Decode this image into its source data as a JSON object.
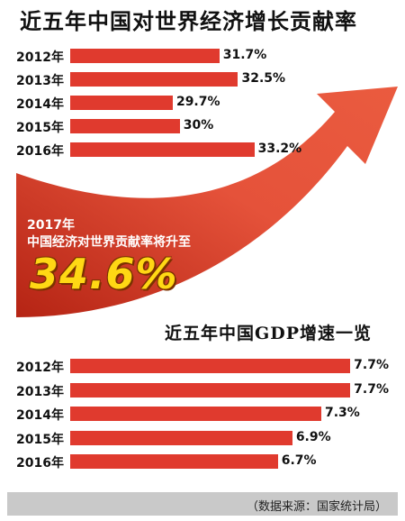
{
  "title1": "近五年中国对世界经济增长贡献率",
  "title2": "近五年中国GDP增速一览",
  "forecast": {
    "year": "2017年",
    "text": "中国经济对世界贡献率将升至",
    "value": "34.6%"
  },
  "source": "（数据来源：国家统计局）",
  "colors": {
    "bar": "#e03a2e",
    "arrow_light": "#e5523a",
    "arrow_dark": "#b52414",
    "highlight": "#ffd814"
  },
  "chart_data": [
    {
      "type": "bar",
      "orientation": "horizontal",
      "title": "近五年中国对世界经济增长贡献率",
      "categories": [
        "2012年",
        "2013年",
        "2014年",
        "2015年",
        "2016年"
      ],
      "values": [
        31.7,
        32.5,
        29.7,
        30,
        33.2
      ],
      "labels": [
        "31.7%",
        "32.5%",
        "29.7%",
        "30%",
        "33.2%"
      ]
    },
    {
      "type": "bar",
      "orientation": "horizontal",
      "title": "近五年中国GDP增速一览",
      "categories": [
        "2012年",
        "2013年",
        "2014年",
        "2015年",
        "2016年"
      ],
      "values": [
        7.7,
        7.7,
        7.3,
        6.9,
        6.7
      ],
      "labels": [
        "7.7%",
        "7.7%",
        "7.3%",
        "6.9%",
        "6.7%"
      ]
    }
  ]
}
